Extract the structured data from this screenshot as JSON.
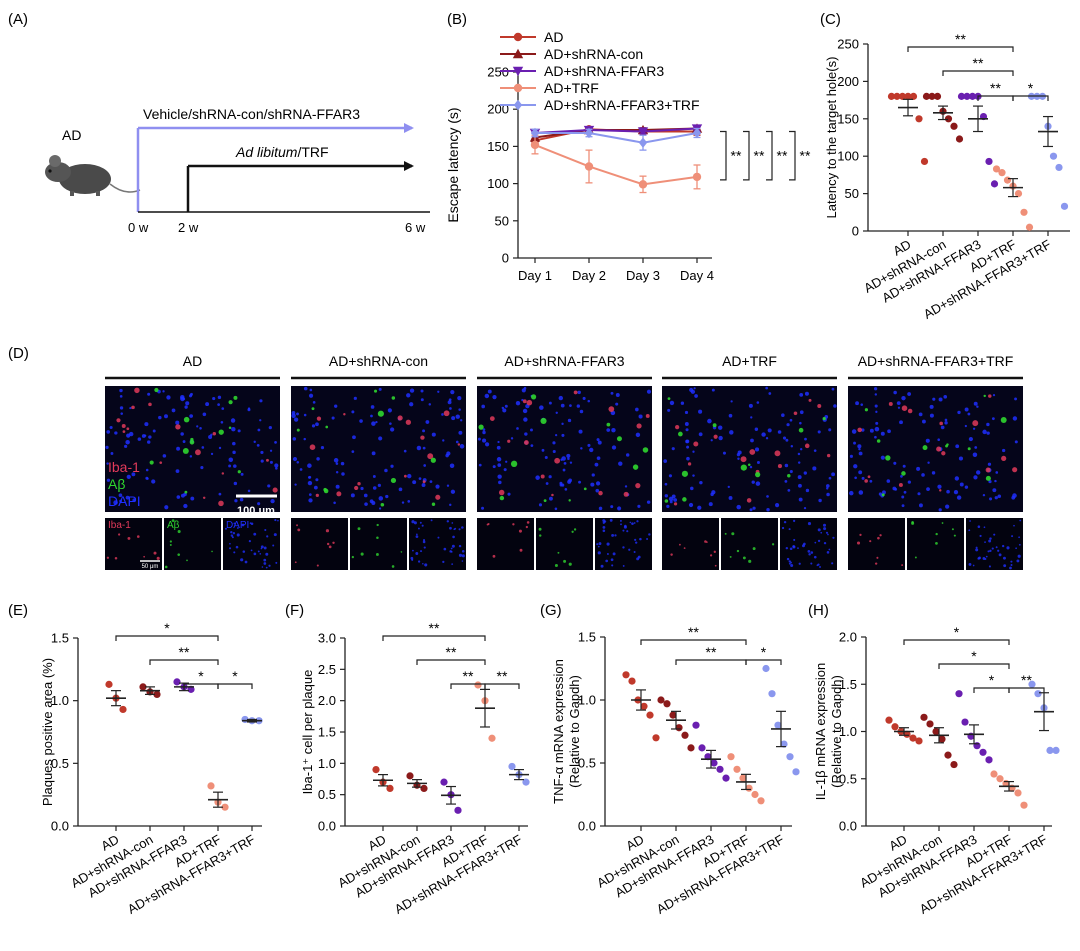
{
  "colors": {
    "AD": "#c0392b",
    "con": "#8b1a1a",
    "ffar3": "#6a1fb0",
    "trf": "#ef8f78",
    "ffar3trf": "#8a97ee",
    "vehicleArrow": "#8f8ff0",
    "microGreen": "#2fd62f",
    "microRed": "#e13a5a",
    "microBlue": "#1f2fff"
  },
  "panelA": {
    "label": "(A)",
    "group": "AD",
    "arrow1": "Vehicle/shRNA-con/shRNA-FFAR3",
    "arrow2_italic": "Ad libitum",
    "arrow2_rest": "/TRF",
    "ticks": [
      "0 w",
      "2 w",
      "6 w"
    ]
  },
  "chart_data": [
    {
      "panel": "(B)",
      "type": "line",
      "ylabel": "Escape latency (s)",
      "ylim": [
        0,
        250
      ],
      "yticks": [
        0,
        50,
        100,
        150,
        200,
        250
      ],
      "categories": [
        "Day 1",
        "Day 2",
        "Day 3",
        "Day 4"
      ],
      "series": [
        {
          "name": "AD",
          "color": "#c0392b",
          "marker": "circle",
          "values": [
            158,
            173,
            170,
            170
          ],
          "err": [
            5,
            3,
            4,
            5
          ]
        },
        {
          "name": "AD+shRNA-con",
          "color": "#8b1a1a",
          "marker": "triangle-up",
          "values": [
            162,
            172,
            172,
            174
          ],
          "err": [
            5,
            3,
            3,
            4
          ]
        },
        {
          "name": "AD+shRNA-FFAR3",
          "color": "#6a1fb0",
          "marker": "triangle-down",
          "values": [
            168,
            172,
            170,
            174
          ],
          "err": [
            4,
            3,
            3,
            3
          ]
        },
        {
          "name": "AD+TRF",
          "color": "#ef8f78",
          "marker": "circle",
          "values": [
            152,
            123,
            99,
            109
          ],
          "err": [
            12,
            22,
            11,
            16
          ]
        },
        {
          "name": "AD+shRNA-FFAR3+TRF",
          "color": "#8a97ee",
          "marker": "diamond",
          "values": [
            168,
            168,
            155,
            168
          ],
          "err": [
            5,
            5,
            10,
            6
          ]
        }
      ],
      "significance": [
        "**",
        "**",
        "**",
        "**"
      ]
    },
    {
      "panel": "(C)",
      "type": "scatter",
      "ylabel": "Latency to the target hole(s)",
      "ylim": [
        0,
        250
      ],
      "yticks": [
        0,
        50,
        100,
        150,
        200,
        250
      ],
      "categories": [
        "AD",
        "AD+shRNA-con",
        "AD+shRNA-FFAR3",
        "AD+TRF",
        "AD+shRNA-FFAR3+TRF"
      ],
      "points": [
        [
          180,
          180,
          180,
          180,
          180,
          150,
          93
        ],
        [
          180,
          180,
          180,
          160,
          150,
          140,
          123
        ],
        [
          180,
          180,
          180,
          180,
          153,
          93,
          63
        ],
        [
          83,
          78,
          68,
          60,
          50,
          25,
          5
        ],
        [
          180,
          180,
          180,
          140,
          100,
          85,
          33
        ]
      ],
      "means": [
        165,
        158,
        150,
        58,
        133
      ],
      "sem": [
        11,
        9,
        17,
        12,
        20
      ],
      "brackets": [
        {
          "from": 0,
          "to": 3,
          "label": "**"
        },
        {
          "from": 1,
          "to": 3,
          "label": "**"
        },
        {
          "from": 2,
          "to": 3,
          "label": "**"
        },
        {
          "from": 3,
          "to": 4,
          "label": "*"
        }
      ]
    },
    {
      "panel": "(E)",
      "type": "scatter",
      "ylabel": "Plaques positive area (%)",
      "ylim": [
        0,
        1.5
      ],
      "yticks": [
        "0.0",
        "0.5",
        "1.0",
        "1.5"
      ],
      "categories": [
        "AD",
        "AD+shRNA-con",
        "AD+shRNA-FFAR3",
        "AD+TRF",
        "AD+shRNA-FFAR3+TRF"
      ],
      "points": [
        [
          1.13,
          1.02,
          0.93
        ],
        [
          1.11,
          1.07,
          1.05
        ],
        [
          1.15,
          1.11,
          1.09
        ],
        [
          0.32,
          0.19,
          0.15
        ],
        [
          0.85,
          0.84,
          0.84
        ]
      ],
      "means": [
        1.02,
        1.08,
        1.11,
        0.21,
        0.84
      ],
      "sem": [
        0.06,
        0.03,
        0.03,
        0.06,
        0.01
      ],
      "brackets": [
        {
          "from": 0,
          "to": 3,
          "label": "*"
        },
        {
          "from": 1,
          "to": 3,
          "label": "**"
        },
        {
          "from": 2,
          "to": 3,
          "label": "*"
        },
        {
          "from": 3,
          "to": 4,
          "label": "*"
        }
      ]
    },
    {
      "panel": "(F)",
      "type": "scatter",
      "ylabel": "Iba-1⁺ cell per plaque",
      "ylim": [
        0,
        3.0
      ],
      "yticks": [
        "0.0",
        "0.5",
        "1.0",
        "1.5",
        "2.0",
        "2.5",
        "3.0"
      ],
      "categories": [
        "AD",
        "AD+shRNA-con",
        "AD+shRNA-FFAR3",
        "AD+TRF",
        "AD+shRNA-FFAR3+TRF"
      ],
      "points": [
        [
          0.9,
          0.7,
          0.6
        ],
        [
          0.8,
          0.65,
          0.6
        ],
        [
          0.7,
          0.5,
          0.25
        ],
        [
          2.25,
          2.0,
          1.4
        ],
        [
          0.95,
          0.82,
          0.7
        ]
      ],
      "means": [
        0.73,
        0.68,
        0.49,
        1.88,
        0.82
      ],
      "sem": [
        0.09,
        0.06,
        0.14,
        0.3,
        0.08
      ],
      "brackets": [
        {
          "from": 0,
          "to": 3,
          "label": "**"
        },
        {
          "from": 1,
          "to": 3,
          "label": "**"
        },
        {
          "from": 2,
          "to": 3,
          "label": "**"
        },
        {
          "from": 3,
          "to": 4,
          "label": "**"
        }
      ]
    },
    {
      "panel": "(G)",
      "type": "scatter",
      "ylabel": "TNF-α mRNA expression\n(Relative to Gapdh)",
      "ylim": [
        0,
        1.5
      ],
      "yticks": [
        "0.0",
        "0.5",
        "1.0",
        "1.5"
      ],
      "categories": [
        "AD",
        "AD+shRNA-con",
        "AD+shRNA-FFAR3",
        "AD+TRF",
        "AD+shRNA-FFAR3+TRF"
      ],
      "points": [
        [
          1.2,
          1.15,
          1.0,
          0.95,
          0.88,
          0.7
        ],
        [
          1.0,
          0.97,
          0.88,
          0.78,
          0.72,
          0.62
        ],
        [
          0.8,
          0.62,
          0.55,
          0.5,
          0.45,
          0.38
        ],
        [
          0.55,
          0.45,
          0.38,
          0.3,
          0.25,
          0.2
        ],
        [
          1.25,
          1.05,
          0.8,
          0.65,
          0.55,
          0.43
        ]
      ],
      "means": [
        1.0,
        0.84,
        0.53,
        0.35,
        0.77
      ],
      "sem": [
        0.08,
        0.07,
        0.07,
        0.06,
        0.14
      ],
      "brackets": [
        {
          "from": 0,
          "to": 3,
          "label": "**"
        },
        {
          "from": 1,
          "to": 3,
          "label": "**"
        },
        {
          "from": 3,
          "to": 4,
          "label": "*"
        }
      ]
    },
    {
      "panel": "(H)",
      "type": "scatter",
      "ylabel": "IL-1β mRNA expression\n(Relative to Gapdh)",
      "ylim": [
        0,
        2.0
      ],
      "yticks": [
        "0.0",
        "0.5",
        "1.0",
        "1.5",
        "2.0"
      ],
      "categories": [
        "AD",
        "AD+shRNA-con",
        "AD+shRNA-FFAR3",
        "AD+TRF",
        "AD+shRNA-FFAR3+TRF"
      ],
      "points": [
        [
          1.12,
          1.05,
          1.0,
          0.97,
          0.93,
          0.9
        ],
        [
          1.15,
          1.08,
          1.0,
          0.92,
          0.75,
          0.65
        ],
        [
          1.4,
          1.1,
          0.95,
          0.85,
          0.78,
          0.7
        ],
        [
          0.55,
          0.5,
          0.45,
          0.4,
          0.35,
          0.22
        ],
        [
          1.5,
          1.4,
          1.25,
          0.8,
          0.8
        ]
      ],
      "means": [
        1.0,
        0.96,
        0.97,
        0.42,
        1.21
      ],
      "sem": [
        0.04,
        0.08,
        0.1,
        0.05,
        0.2
      ],
      "brackets": [
        {
          "from": 0,
          "to": 3,
          "label": "*"
        },
        {
          "from": 1,
          "to": 3,
          "label": "*"
        },
        {
          "from": 2,
          "to": 3,
          "label": "*"
        },
        {
          "from": 3,
          "to": 4,
          "label": "**"
        }
      ]
    }
  ],
  "panelD": {
    "label": "(D)",
    "groups": [
      "AD",
      "AD+shRNA-con",
      "AD+shRNA-FFAR3",
      "AD+TRF",
      "AD+shRNA-FFAR3+TRF"
    ],
    "stains": [
      "Iba-1",
      "Aβ",
      "DAPI"
    ],
    "scaleBig": "100 μm",
    "scaleSmall": "50 μm"
  }
}
